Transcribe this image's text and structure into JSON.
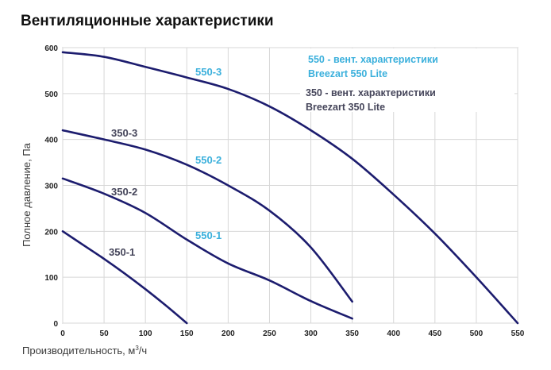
{
  "title": "Вентиляционные характеристики",
  "chart_data": {
    "type": "line",
    "title": "Вентиляционные характеристики",
    "xlabel": "Производительность, м³/ч",
    "xlabel_parts": {
      "main": "Производительность, м",
      "sup": "3",
      "tail": "/ч"
    },
    "ylabel": "Полное давление, Па",
    "xlim": [
      0,
      550
    ],
    "ylim": [
      0,
      600
    ],
    "x_ticks": [
      0,
      50,
      100,
      150,
      200,
      250,
      300,
      350,
      400,
      450,
      500,
      550
    ],
    "y_ticks": [
      0,
      100,
      200,
      300,
      400,
      500,
      600
    ],
    "grid": true,
    "line_color": "#1c1c6e",
    "series": [
      {
        "name": "350-1",
        "label_color": "#45455a",
        "x": [
          0,
          25,
          50,
          75,
          100,
          125,
          150
        ],
        "y": [
          200,
          170,
          140,
          108,
          74,
          38,
          0
        ]
      },
      {
        "name": "350-2",
        "label_color": "#45455a",
        "x": [
          0,
          50,
          100,
          150,
          200,
          225,
          250
        ],
        "y": [
          315,
          282,
          240,
          182,
          130,
          93,
          48
        ]
      },
      {
        "name": "350-3",
        "label_color": "#45455a",
        "x": [
          0,
          50,
          100,
          150,
          200,
          250,
          300,
          325,
          350
        ],
        "y": [
          420,
          400,
          378,
          345,
          300,
          245,
          165,
          112,
          47
        ]
      },
      {
        "name": "550-1",
        "label_color": "#3bb0dc",
        "x": [
          0,
          50,
          100,
          150,
          200,
          250,
          300,
          350
        ],
        "y": [
          315,
          282,
          240,
          182,
          130,
          93,
          48,
          10
        ]
      },
      {
        "name": "550-2",
        "label_color": "#3bb0dc",
        "x": [
          0,
          50,
          100,
          150,
          200,
          250,
          300,
          350
        ],
        "y": [
          420,
          400,
          378,
          345,
          300,
          245,
          165,
          47
        ]
      },
      {
        "name": "550-3",
        "label_color": "#3bb0dc",
        "x": [
          0,
          50,
          100,
          150,
          200,
          250,
          300,
          350,
          400,
          450,
          500,
          550
        ],
        "y": [
          590,
          580,
          558,
          535,
          510,
          472,
          420,
          358,
          280,
          195,
          100,
          0
        ]
      }
    ],
    "legend": {
      "position": "top-right",
      "entries": [
        {
          "line1": "550 - вент. характеристики",
          "line2": "Breezart 550 Lite",
          "color": "#3bb0dc"
        },
        {
          "line1": "350 - вент. характеристики",
          "line2": "Breezart 350 Lite",
          "color": "#45455a"
        }
      ]
    }
  }
}
